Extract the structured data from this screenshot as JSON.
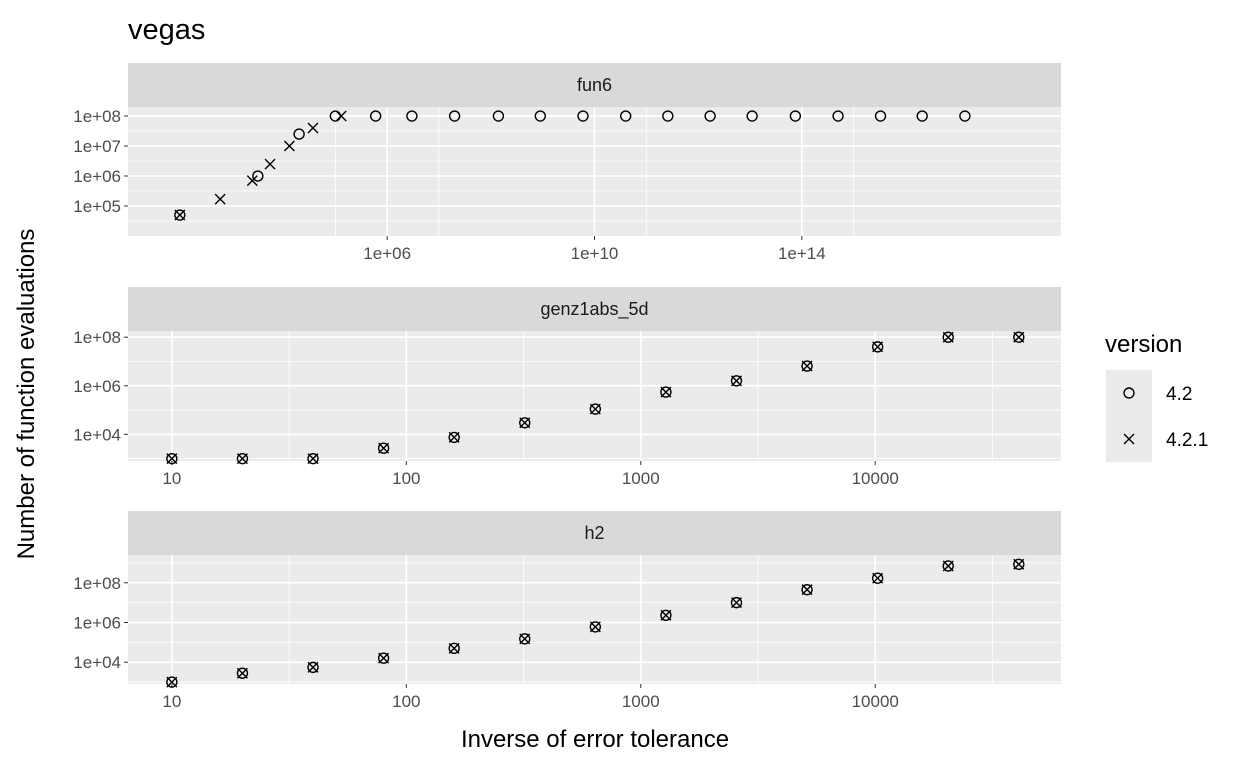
{
  "chart_data": {
    "type": "scatter",
    "title": "vegas",
    "xlabel": "Inverse of error tolerance",
    "ylabel": "Number of function evaluations",
    "x_scale": "log",
    "y_scale": "log",
    "legend": {
      "title": "version",
      "placement": "right",
      "entries": [
        {
          "label": "4.2",
          "shape": "circle"
        },
        {
          "label": "4.2.1",
          "shape": "cross"
        }
      ]
    },
    "colors": {
      "panel_bg": "#ebebeb",
      "strip_bg": "#d9d9d9",
      "grid": "#ffffff",
      "points": "#000000"
    },
    "panels": [
      {
        "name": "fun6",
        "xlim": [
          10,
          1e+19
        ],
        "ylim": [
          10000,
          200000000
        ],
        "x_ticks": [
          {
            "value": 1000000.0,
            "label": "1e+06"
          },
          {
            "value": 10000000000.0,
            "label": "1e+10"
          },
          {
            "value": 100000000000000.0,
            "label": "1e+14"
          }
        ],
        "y_ticks": [
          {
            "value": 100000,
            "label": "1e+05"
          },
          {
            "value": 1000000,
            "label": "1e+06"
          },
          {
            "value": 10000000,
            "label": "1e+07"
          },
          {
            "value": 100000000,
            "label": "1e+08"
          }
        ],
        "series": [
          {
            "name": "4.2",
            "shape": "circle",
            "x": [
              100,
              3200,
              20000,
              100000,
              600000,
              3000000.0,
              20000000.0,
              140000000.0,
              900000000.0,
              6000000000.0,
              40000000000.0,
              260000000000.0,
              1700000000000.0,
              11000000000000.0,
              75000000000000.0,
              500000000000000.0,
              3300000000000000.0,
              2.1e+16,
              1.4e+17
            ],
            "y": [
              50000,
              1000000,
              25000000,
              100000000,
              100000000,
              100000000,
              100000000,
              100000000,
              100000000,
              100000000,
              100000000,
              100000000,
              100000000,
              100000000,
              100000000,
              100000000,
              100000000,
              100000000,
              100000000
            ]
          },
          {
            "name": "4.2.1",
            "shape": "cross",
            "x": [
              100,
              600,
              2500,
              5500,
              13000,
              37000,
              130000
            ],
            "y": [
              50000,
              170000,
              700000,
              2500000,
              10000000,
              40000000,
              100000000
            ]
          }
        ]
      },
      {
        "name": "genz1abs_5d",
        "xlim": [
          6.5,
          62000
        ],
        "ylim": [
          800,
          180000000
        ],
        "x_ticks": [
          {
            "value": 10,
            "label": "10"
          },
          {
            "value": 100,
            "label": "100"
          },
          {
            "value": 1000,
            "label": "1000"
          },
          {
            "value": 10000,
            "label": "10000"
          }
        ],
        "y_ticks": [
          {
            "value": 10000,
            "label": "1e+04"
          },
          {
            "value": 1000000,
            "label": "1e+06"
          },
          {
            "value": 100000000,
            "label": "1e+08"
          }
        ],
        "series": [
          {
            "name": "4.2",
            "shape": "circle",
            "x": [
              10,
              20,
              40,
              80,
              160,
              320,
              640,
              1280,
              2560,
              5120,
              10240,
              20480,
              40960
            ],
            "y": [
              1000,
              1000,
              1000,
              2700,
              7500,
              30000,
              110000,
              550000,
              1600000,
              6500000,
              40000000,
              100000000,
              100000000
            ]
          },
          {
            "name": "4.2.1",
            "shape": "cross",
            "x": [
              10,
              20,
              40,
              80,
              160,
              320,
              640,
              1280,
              2560,
              5120,
              10240,
              20480,
              40960
            ],
            "y": [
              1000,
              1000,
              1000,
              2700,
              7500,
              30000,
              110000,
              550000,
              1600000,
              6500000,
              40000000,
              100000000,
              100000000
            ]
          }
        ]
      },
      {
        "name": "h2",
        "xlim": [
          6.5,
          62000
        ],
        "ylim": [
          800,
          2500000000
        ],
        "x_ticks": [
          {
            "value": 10,
            "label": "10"
          },
          {
            "value": 100,
            "label": "100"
          },
          {
            "value": 1000,
            "label": "1000"
          },
          {
            "value": 10000,
            "label": "10000"
          }
        ],
        "y_ticks": [
          {
            "value": 10000,
            "label": "1e+04"
          },
          {
            "value": 1000000,
            "label": "1e+06"
          },
          {
            "value": 100000000,
            "label": "1e+08"
          }
        ],
        "series": [
          {
            "name": "4.2",
            "shape": "circle",
            "x": [
              10,
              20,
              40,
              80,
              160,
              320,
              640,
              1280,
              2560,
              5120,
              10240,
              20480,
              40960
            ],
            "y": [
              1000,
              2800,
              5500,
              16000,
              50000,
              150000,
              600000,
              2300000,
              10000000,
              45000000,
              170000000,
              700000000,
              850000000
            ]
          },
          {
            "name": "4.2.1",
            "shape": "cross",
            "x": [
              10,
              20,
              40,
              80,
              160,
              320,
              640,
              1280,
              2560,
              5120,
              10240,
              20480,
              40960
            ],
            "y": [
              1000,
              2800,
              5500,
              16000,
              50000,
              150000,
              600000,
              2300000,
              10000000,
              45000000,
              170000000,
              700000000,
              850000000
            ]
          }
        ]
      }
    ]
  }
}
